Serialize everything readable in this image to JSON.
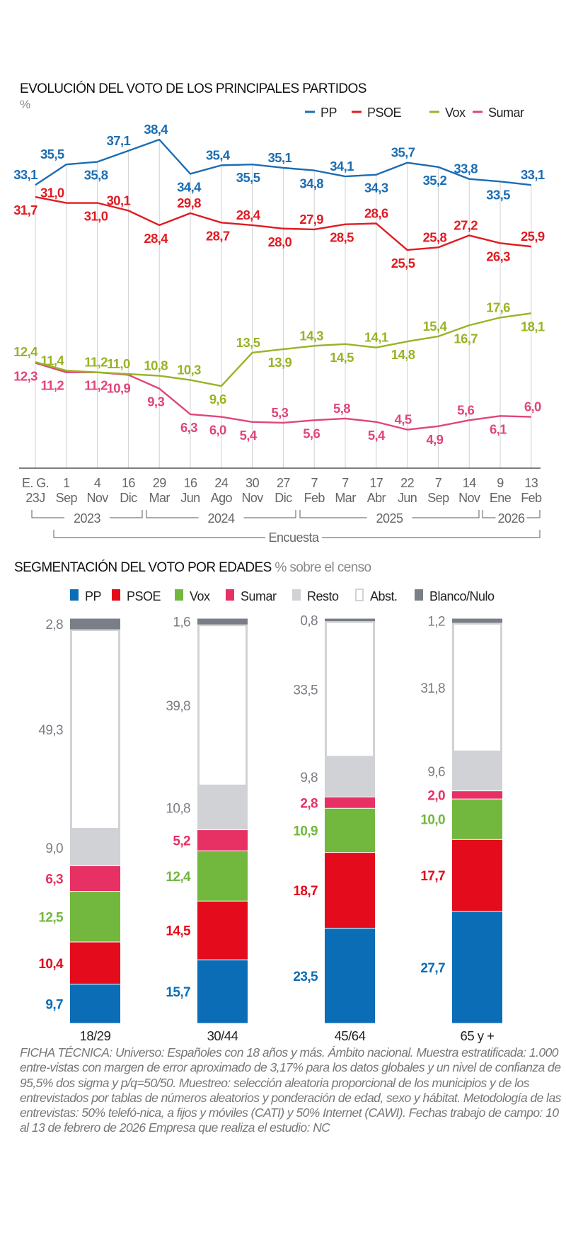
{
  "chart_data": [
    {
      "type": "line",
      "title": "EVOLUCIÓN DEL VOTO DE LOS PRINCIPALES PARTIDOS",
      "unit": "%",
      "categories": [
        [
          "E. G.",
          "23J"
        ],
        [
          "1",
          "Sep"
        ],
        [
          "4",
          "Nov"
        ],
        [
          "16",
          "Dic"
        ],
        [
          "29",
          "Mar"
        ],
        [
          "16",
          "Jun"
        ],
        [
          "24",
          "Ago"
        ],
        [
          "30",
          "Nov"
        ],
        [
          "27",
          "Dic"
        ],
        [
          "7",
          "Feb"
        ],
        [
          "7",
          "Mar"
        ],
        [
          "17",
          "Abr"
        ],
        [
          "22",
          "Jun"
        ],
        [
          "7",
          "Sep"
        ],
        [
          "14",
          "Nov"
        ],
        [
          "9",
          "Ene"
        ],
        [
          "13",
          "Feb"
        ]
      ],
      "year_groups": [
        "2023",
        "2024",
        "2025",
        "2026"
      ],
      "survey_label": "Encuesta",
      "ylim": [
        0,
        40
      ],
      "grid": "vertical",
      "legend_position": "top-right",
      "series": [
        {
          "name": "PP",
          "color": "#1b6db3",
          "values": [
            33.1,
            35.5,
            35.8,
            37.1,
            38.4,
            34.4,
            35.4,
            35.5,
            35.1,
            34.8,
            34.1,
            34.3,
            35.7,
            35.2,
            33.8,
            33.5,
            33.1
          ]
        },
        {
          "name": "PSOE",
          "color": "#e11b22",
          "values": [
            31.7,
            31.0,
            31.0,
            30.1,
            28.4,
            29.8,
            28.7,
            28.4,
            28.0,
            27.9,
            28.5,
            28.6,
            25.5,
            25.8,
            27.2,
            26.3,
            25.9
          ]
        },
        {
          "name": "Vox",
          "color": "#97b425",
          "values": [
            12.4,
            11.4,
            11.2,
            11.0,
            10.8,
            10.3,
            9.6,
            13.5,
            13.9,
            14.3,
            14.5,
            14.1,
            14.8,
            15.4,
            16.7,
            17.6,
            18.1
          ]
        },
        {
          "name": "Sumar",
          "color": "#e0457b",
          "values": [
            12.3,
            11.2,
            11.2,
            10.9,
            9.3,
            6.3,
            6.0,
            5.4,
            5.3,
            5.6,
            5.8,
            5.4,
            4.5,
            4.9,
            5.6,
            6.1,
            6.0
          ]
        }
      ]
    },
    {
      "type": "bar",
      "stacked": true,
      "title": "SEGMENTACIÓN DEL VOTO POR EDADES",
      "subtitle": "% sobre el censo",
      "categories": [
        "18/29",
        "30/44",
        "45/64",
        "65 y +"
      ],
      "series": [
        {
          "name": "PP",
          "color": "#0b6db5",
          "label_color": "#0b6db5",
          "values": [
            9.7,
            15.7,
            23.5,
            27.7
          ]
        },
        {
          "name": "PSOE",
          "color": "#e30b1c",
          "label_color": "#e30b1c",
          "values": [
            10.4,
            14.5,
            18.7,
            17.7
          ]
        },
        {
          "name": "Vox",
          "color": "#72b73e",
          "label_color": "#72b73e",
          "values": [
            12.5,
            12.4,
            10.9,
            10.0
          ]
        },
        {
          "name": "Sumar",
          "color": "#e73063",
          "label_color": "#e73063",
          "values": [
            6.3,
            5.2,
            2.8,
            2.0
          ]
        },
        {
          "name": "Resto",
          "color": "#d1d2d6",
          "label_color": "#7a7d84",
          "values": [
            9.0,
            10.8,
            9.8,
            9.6
          ]
        },
        {
          "name": "Abst.",
          "color": "#ffffff",
          "label_color": "#7a7d84",
          "values": [
            49.3,
            39.8,
            33.5,
            31.8
          ]
        },
        {
          "name": "Blanco/Nulo",
          "color": "#7a7e86",
          "label_color": "#7a7d84",
          "values": [
            2.8,
            1.6,
            0.8,
            1.2
          ]
        }
      ]
    }
  ],
  "ficha_tecnica": "FICHA TÉCNICA: Universo: Españoles con 18 años y más. Ámbito nacional. Muestra estratificada: 1.000 entre-vistas con margen de error aproximado de 3,17% para los datos globales y un nivel de confianza de 95,5% dos sigma y p/q=50/50. Muestreo: selección aleatoria proporcional de los municipios y de los entrevistados por tablas de números aleatorios y ponderación de edad, sexo y hábitat. Metodología de las entrevistas: 50% telefó-nica, a fijos y móviles (CATI) y 50% Internet (CAWI). Fechas trabajo de campo: 10 al 13 de febrero de 2026 Empresa que realiza el estudio: NC"
}
